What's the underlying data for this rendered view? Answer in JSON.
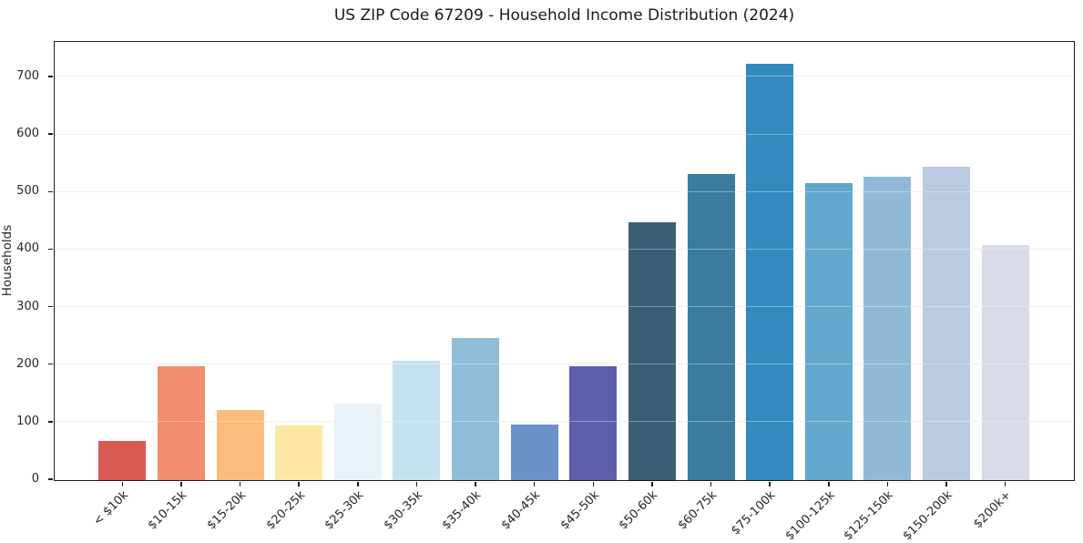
{
  "chart_data": {
    "type": "bar",
    "title": "US ZIP Code 67209 - Household Income Distribution (2024)",
    "xlabel": "",
    "ylabel": "Households",
    "categories": [
      "< $10k",
      "$10-15k",
      "$15-20k",
      "$20-25k",
      "$25-30k",
      "$30-35k",
      "$35-40k",
      "$40-45k",
      "$45-50k",
      "$50-60k",
      "$60-75k",
      "$75-100k",
      "$100-125k",
      "$125-150k",
      "$150-200k",
      "$200k+"
    ],
    "values": [
      68,
      198,
      122,
      95,
      133,
      207,
      247,
      97,
      198,
      448,
      532,
      724,
      516,
      528,
      544,
      408
    ],
    "bar_colors": [
      "#da5a52",
      "#f28d6d",
      "#fbbd7c",
      "#fde8a2",
      "#e8f2f8",
      "#c3e1ee",
      "#90bcda",
      "#6c90c8",
      "#5b5fae",
      "#3a5f72",
      "#3b7b9e",
      "#338ac0",
      "#62a6cb",
      "#91b9d7",
      "#b9c9e1",
      "#d8dae7"
    ],
    "ylim": [
      0,
      760
    ],
    "yticks": [
      0,
      100,
      200,
      300,
      400,
      500,
      600,
      700
    ],
    "grid": "horizontal-only",
    "legend": "none",
    "background_color": "#ffffff",
    "axis_color": "#1c1c1c",
    "gridline_color": "#e7e7e7",
    "tick_label_color": "#262626"
  }
}
